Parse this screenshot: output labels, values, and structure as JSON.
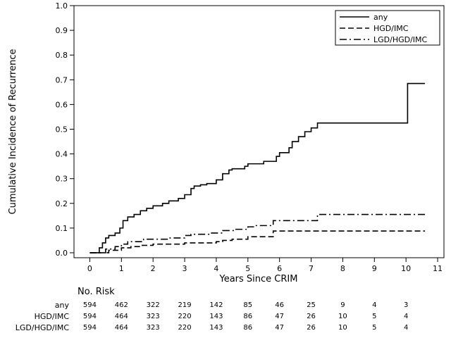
{
  "chart_data": {
    "type": "line",
    "step": true,
    "xlabel": "Years Since CRIM",
    "ylabel": "Cumulative Incidence of Recurrence",
    "xlim": [
      -0.5,
      11.2
    ],
    "ylim": [
      -0.02,
      1.0
    ],
    "xticks": [
      0,
      1,
      2,
      3,
      4,
      5,
      6,
      7,
      8,
      9,
      10,
      11
    ],
    "yticks": [
      0.0,
      0.1,
      0.2,
      0.3,
      0.4,
      0.5,
      0.6,
      0.7,
      0.8,
      0.9,
      1.0
    ],
    "ytick_labels": [
      "0.0",
      "0.1",
      "0.2",
      "0.3",
      "0.4",
      "0.5",
      "0.6",
      "0.7",
      "0.8",
      "0.9",
      "1.0"
    ],
    "grid": false,
    "legend_position": "top-right",
    "series": [
      {
        "name": "any",
        "style": "solid",
        "points": [
          [
            0,
            0
          ],
          [
            0.2,
            0
          ],
          [
            0.3,
            0.02
          ],
          [
            0.4,
            0.04
          ],
          [
            0.5,
            0.06
          ],
          [
            0.6,
            0.07
          ],
          [
            0.8,
            0.08
          ],
          [
            0.95,
            0.1
          ],
          [
            1.05,
            0.13
          ],
          [
            1.2,
            0.145
          ],
          [
            1.4,
            0.155
          ],
          [
            1.6,
            0.17
          ],
          [
            1.8,
            0.18
          ],
          [
            2.0,
            0.19
          ],
          [
            2.3,
            0.2
          ],
          [
            2.5,
            0.21
          ],
          [
            2.8,
            0.22
          ],
          [
            3.0,
            0.235
          ],
          [
            3.2,
            0.26
          ],
          [
            3.3,
            0.27
          ],
          [
            3.5,
            0.275
          ],
          [
            3.7,
            0.28
          ],
          [
            4.0,
            0.295
          ],
          [
            4.2,
            0.32
          ],
          [
            4.4,
            0.335
          ],
          [
            4.5,
            0.34
          ],
          [
            4.9,
            0.35
          ],
          [
            5.0,
            0.36
          ],
          [
            5.5,
            0.37
          ],
          [
            5.9,
            0.39
          ],
          [
            6.0,
            0.405
          ],
          [
            6.3,
            0.425
          ],
          [
            6.4,
            0.45
          ],
          [
            6.6,
            0.47
          ],
          [
            6.8,
            0.49
          ],
          [
            7.0,
            0.505
          ],
          [
            7.2,
            0.525
          ],
          [
            10.05,
            0.525
          ],
          [
            10.05,
            0.685
          ],
          [
            10.6,
            0.685
          ]
        ]
      },
      {
        "name": "HGD/IMC",
        "style": "dashed",
        "points": [
          [
            0,
            0
          ],
          [
            0.3,
            0
          ],
          [
            0.6,
            0.01
          ],
          [
            1.0,
            0.02
          ],
          [
            1.3,
            0.025
          ],
          [
            1.6,
            0.03
          ],
          [
            2.0,
            0.035
          ],
          [
            3.0,
            0.04
          ],
          [
            4.0,
            0.045
          ],
          [
            4.2,
            0.05
          ],
          [
            4.5,
            0.055
          ],
          [
            5.0,
            0.065
          ],
          [
            5.8,
            0.07
          ],
          [
            5.8,
            0.088
          ],
          [
            10.6,
            0.088
          ]
        ]
      },
      {
        "name": "LGD/HGD/IMC",
        "style": "dashdot",
        "points": [
          [
            0,
            0
          ],
          [
            0.3,
            0
          ],
          [
            0.5,
            0.015
          ],
          [
            0.8,
            0.025
          ],
          [
            1.0,
            0.035
          ],
          [
            1.2,
            0.045
          ],
          [
            1.7,
            0.055
          ],
          [
            2.5,
            0.06
          ],
          [
            3.0,
            0.07
          ],
          [
            3.2,
            0.075
          ],
          [
            3.8,
            0.08
          ],
          [
            4.2,
            0.09
          ],
          [
            4.6,
            0.095
          ],
          [
            5.0,
            0.105
          ],
          [
            5.2,
            0.11
          ],
          [
            5.8,
            0.13
          ],
          [
            7.2,
            0.155
          ],
          [
            10.6,
            0.155
          ]
        ]
      }
    ],
    "risk_table": {
      "title": "No. Risk",
      "times": [
        0,
        1,
        2,
        3,
        4,
        5,
        6,
        7,
        8,
        9,
        10
      ],
      "rows": [
        {
          "label": "any",
          "values": [
            "594",
            "462",
            "322",
            "219",
            "142",
            "85",
            "46",
            "25",
            "9",
            "4",
            "3"
          ]
        },
        {
          "label": "HGD/IMC",
          "values": [
            "594",
            "464",
            "323",
            "220",
            "143",
            "86",
            "47",
            "26",
            "10",
            "5",
            "4"
          ]
        },
        {
          "label": "LGD/HGD/IMC",
          "values": [
            "594",
            "464",
            "323",
            "220",
            "143",
            "86",
            "47",
            "26",
            "10",
            "5",
            "4"
          ]
        }
      ]
    }
  }
}
